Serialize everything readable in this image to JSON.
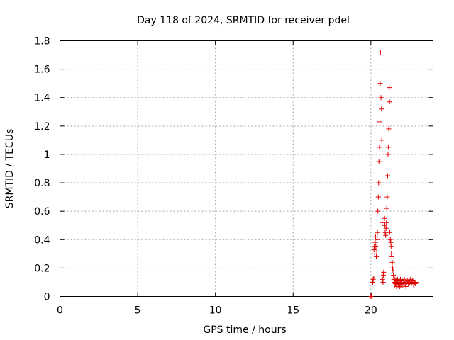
{
  "chart_data": {
    "type": "scatter",
    "title": "Day 118 of 2024, SRMTID for receiver pdel",
    "xlabel": "GPS time / hours",
    "ylabel": "SRMTID / TECUs",
    "xlim": [
      0,
      24
    ],
    "ylim": [
      0,
      1.8
    ],
    "xticks": [
      0,
      5,
      10,
      15,
      20
    ],
    "xtick_labels": [
      "0",
      "5",
      "10",
      "15",
      "20"
    ],
    "yticks": [
      0,
      0.2,
      0.4,
      0.6,
      0.8,
      1.0,
      1.2,
      1.4,
      1.6,
      1.8
    ],
    "ytick_labels": [
      "0",
      "0.2",
      "0.4",
      "0.6",
      "0.8",
      "1",
      "1.2",
      "1.4",
      "1.6",
      "1.8"
    ],
    "grid": true,
    "marker": "+",
    "color": "#e00000",
    "series": [
      {
        "name": "SRMTID",
        "x": [
          20.0,
          20.02,
          20.05,
          20.12,
          20.15,
          20.18,
          20.2,
          20.22,
          20.25,
          20.28,
          20.3,
          20.32,
          20.35,
          20.38,
          20.4,
          20.42,
          20.45,
          20.48,
          20.5,
          20.52,
          20.55,
          20.58,
          20.6,
          20.62,
          20.65,
          20.68,
          20.7,
          20.72,
          20.75,
          20.78,
          20.8,
          20.82,
          20.85,
          20.88,
          20.9,
          20.92,
          20.95,
          20.98,
          21.0,
          21.02,
          21.05,
          21.08,
          21.1,
          21.12,
          21.15,
          21.18,
          21.2,
          21.22,
          21.25,
          21.28,
          21.3,
          21.32,
          21.35,
          21.38,
          21.4,
          21.42,
          21.45,
          21.48,
          21.5,
          21.52,
          21.55,
          21.58,
          21.6,
          21.62,
          21.65,
          21.68,
          21.7,
          21.72,
          21.75,
          21.78,
          21.8,
          21.82,
          21.85,
          21.88,
          21.9,
          21.92,
          21.95,
          21.98,
          22.0,
          22.05,
          22.1,
          22.15,
          22.2,
          22.25,
          22.3,
          22.35,
          22.4,
          22.45,
          22.5,
          22.55,
          22.6,
          22.65,
          22.7,
          22.75,
          22.8,
          22.85,
          22.9
        ],
        "y": [
          0.0,
          0.0,
          0.01,
          0.1,
          0.12,
          0.13,
          0.33,
          0.35,
          0.3,
          0.38,
          0.42,
          0.35,
          0.28,
          0.32,
          0.4,
          0.45,
          0.6,
          0.7,
          0.8,
          0.95,
          1.05,
          1.23,
          1.5,
          1.72,
          1.4,
          1.32,
          1.1,
          0.52,
          0.12,
          0.1,
          0.15,
          0.17,
          0.13,
          0.55,
          0.5,
          0.45,
          0.43,
          0.48,
          0.52,
          0.62,
          0.7,
          0.85,
          1.0,
          1.05,
          1.18,
          1.47,
          1.37,
          0.45,
          0.4,
          0.38,
          0.35,
          0.3,
          0.28,
          0.24,
          0.2,
          0.18,
          0.15,
          0.12,
          0.1,
          0.08,
          0.12,
          0.09,
          0.1,
          0.11,
          0.07,
          0.09,
          0.1,
          0.12,
          0.08,
          0.1,
          0.11,
          0.09,
          0.07,
          0.1,
          0.12,
          0.08,
          0.1,
          0.09,
          0.11,
          0.08,
          0.1,
          0.12,
          0.09,
          0.07,
          0.1,
          0.11,
          0.09,
          0.08,
          0.1,
          0.12,
          0.09,
          0.1,
          0.11,
          0.08,
          0.1,
          0.09,
          0.1
        ]
      }
    ]
  }
}
